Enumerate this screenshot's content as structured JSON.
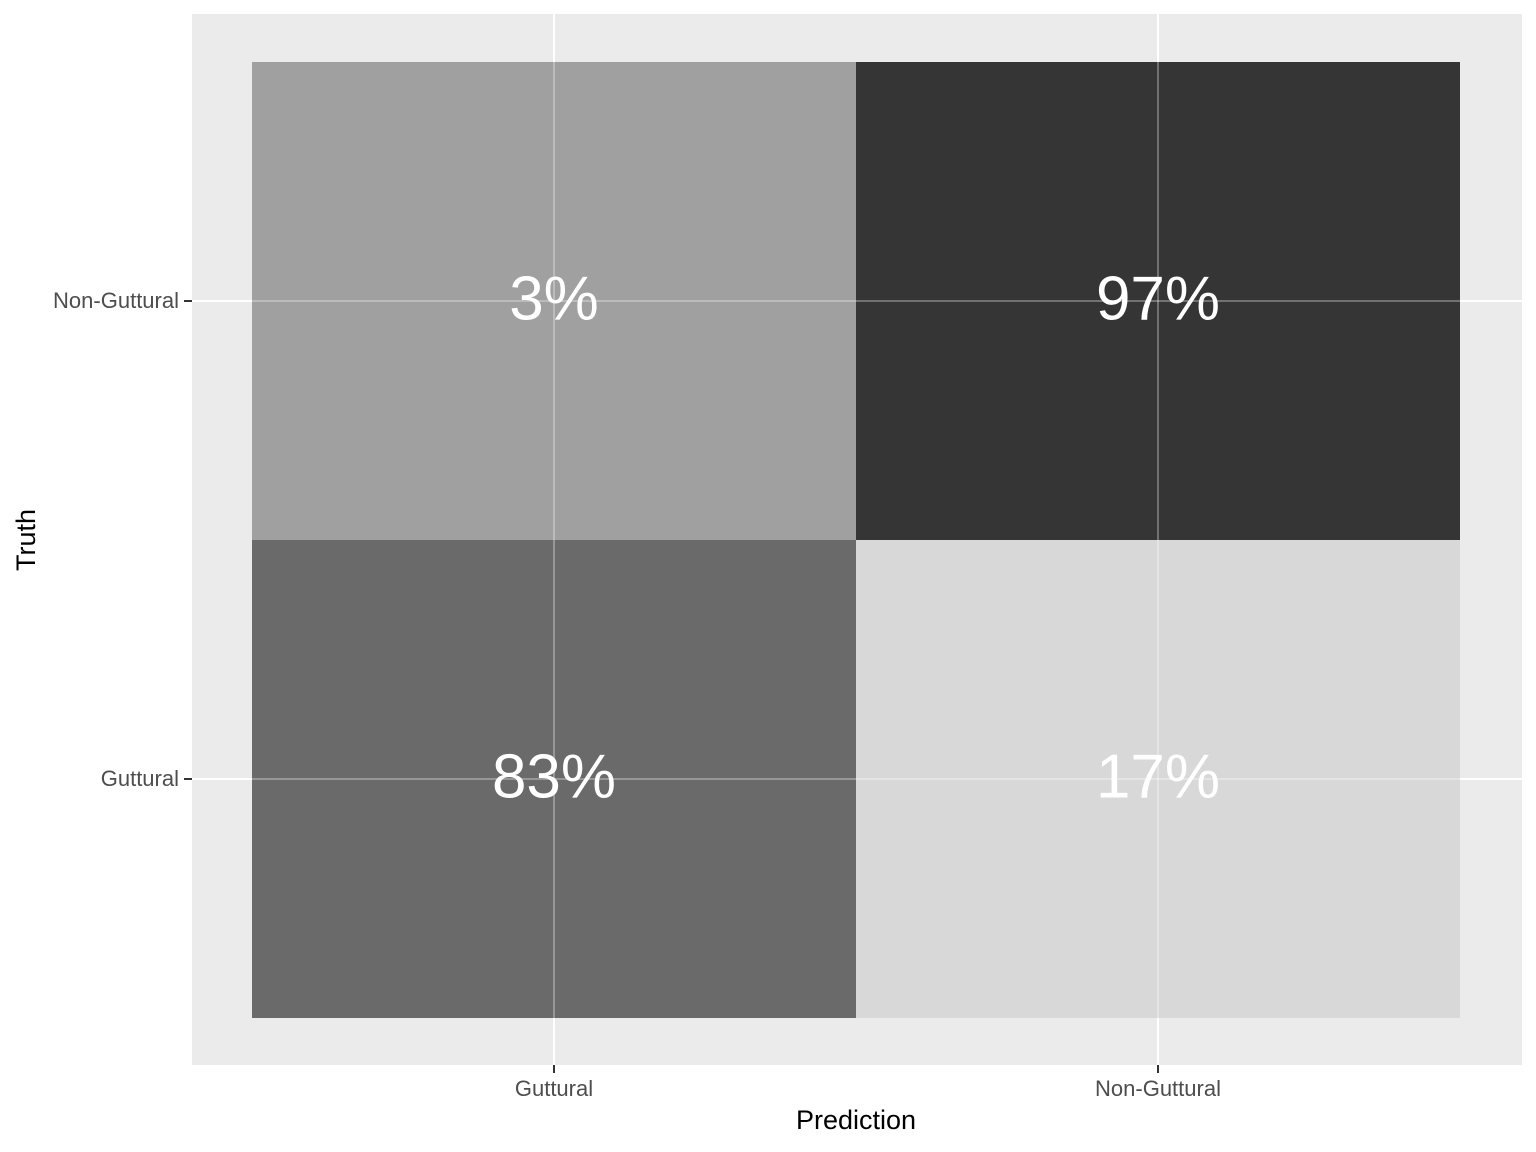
{
  "chart_data": {
    "type": "heatmap",
    "x_label": "Prediction",
    "y_label": "Truth",
    "x_categories": [
      "Guttural",
      "Non-Guttural"
    ],
    "y_categories": [
      "Guttural",
      "Non-Guttural"
    ],
    "values": [
      [
        83,
        17
      ],
      [
        3,
        97
      ]
    ],
    "value_labels": [
      [
        "83%",
        "17%"
      ],
      [
        "3%",
        "97%"
      ]
    ],
    "colors": [
      [
        "#6a6a6a",
        "#d8d8d8"
      ],
      [
        "#a0a0a0",
        "#353535"
      ]
    ],
    "grid": true
  }
}
